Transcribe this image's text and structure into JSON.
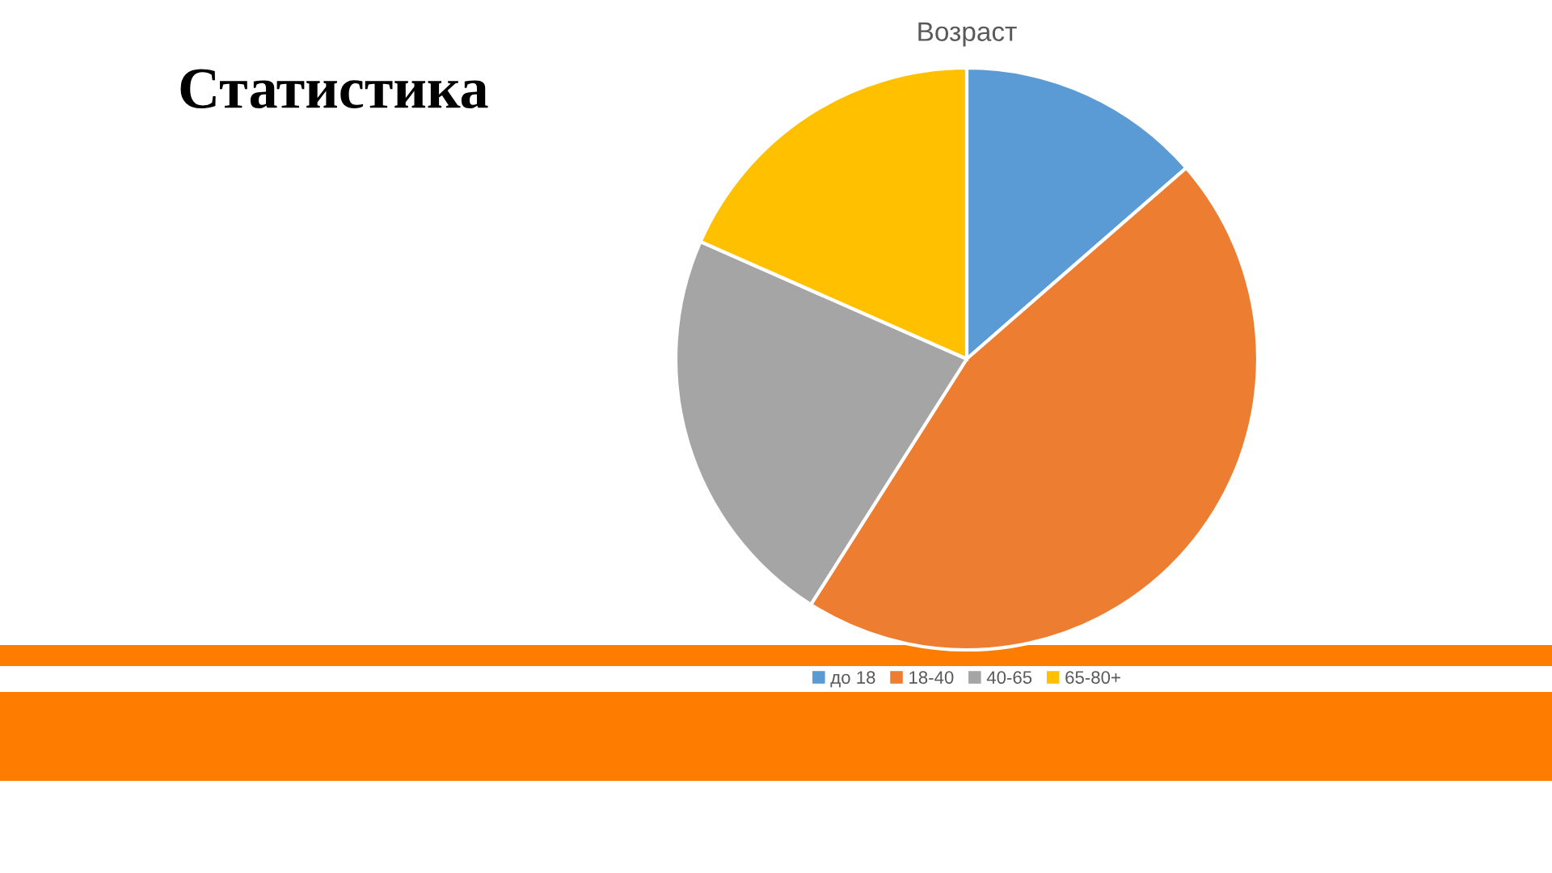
{
  "chart_data": {
    "type": "pie",
    "title": "Возраст",
    "categories": [
      "до 18",
      "18-40",
      "40-65",
      "65-80+"
    ],
    "values": [
      13.6,
      45.4,
      22.6,
      18.4
    ],
    "colors": [
      "#5b9bd5",
      "#ed7d31",
      "#a5a5a5",
      "#ffc000"
    ],
    "legend": "bottom",
    "annotations": [
      "Статистика"
    ]
  }
}
